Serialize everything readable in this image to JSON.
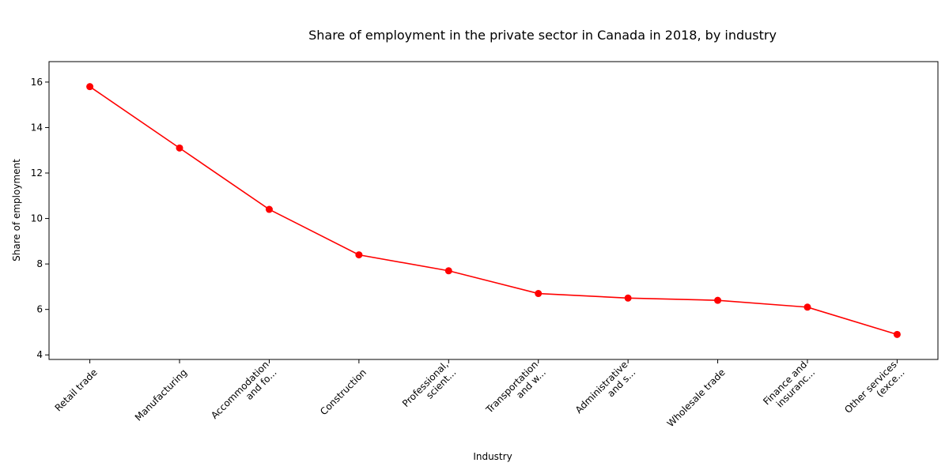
{
  "chart_data": {
    "type": "line",
    "title": "Share of employment in the private sector in Canada in 2018, by industry",
    "xlabel": "Industry",
    "ylabel": "Share of employment",
    "categories": [
      "Retail trade",
      "Manufacturing",
      "Accommodation\nand fo...",
      "Construction",
      "Professional,\nscient...",
      "Transportation\nand w...",
      "Administrative\nand s...",
      "Wholesale trade",
      "Finance and\ninsuranc...",
      "Other services\n(exce..."
    ],
    "series": [
      {
        "values": [
          15.8,
          13.1,
          10.4,
          8.4,
          7.7,
          6.7,
          6.5,
          6.4,
          6.1,
          4.9
        ]
      }
    ],
    "ylim": [
      3.8,
      16.9
    ],
    "yticks": [
      4,
      6,
      8,
      10,
      12,
      14,
      16
    ],
    "grid": false,
    "line_color": "#ff0000",
    "marker": "circle"
  }
}
